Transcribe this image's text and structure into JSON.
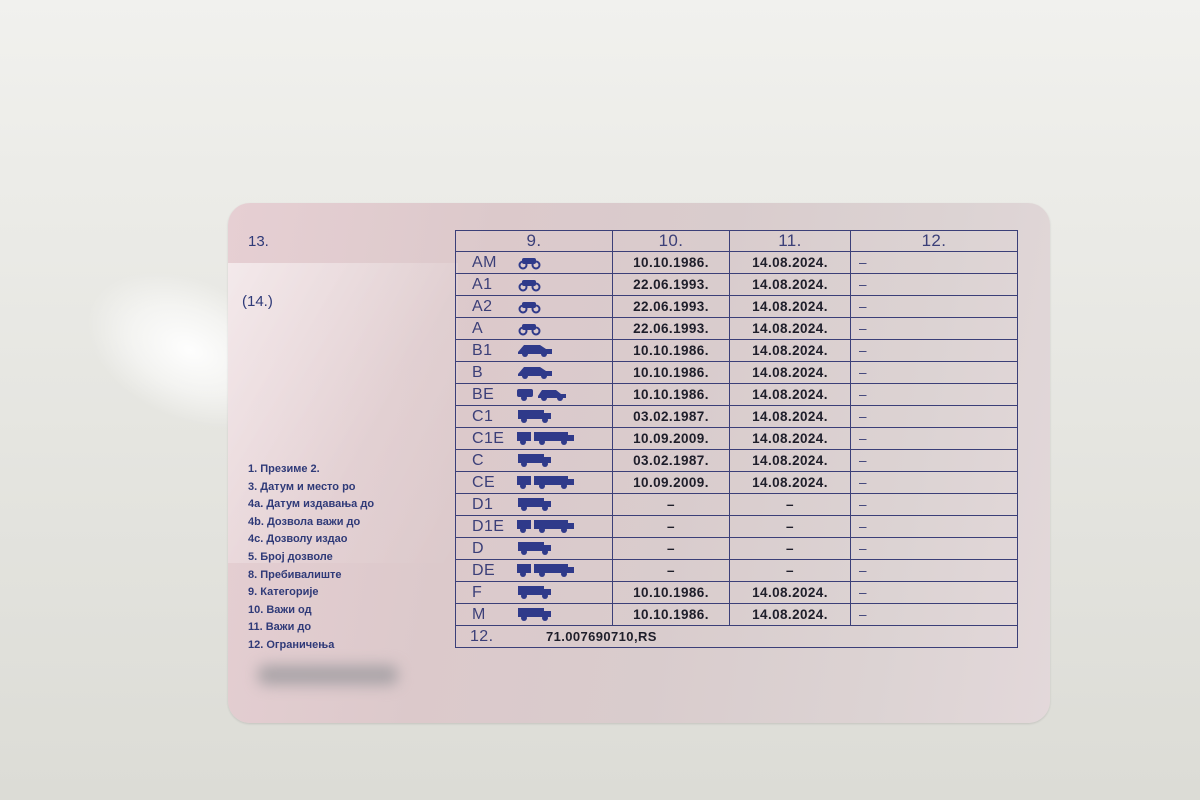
{
  "card": {
    "field13": "13.",
    "field14": "(14.)",
    "legend": [
      "1. Презиме  2.",
      "3. Датум и место ро",
      "4а. Датум издавања до",
      "4b. Дозвола важи до",
      "4c. Дозволу издао",
      "5. Број дозволе",
      "8. Пребивалиште",
      "9. Категорије",
      "10. Важи од",
      "11. Важи до",
      "12. Ограничења"
    ],
    "table": {
      "headers": [
        "9.",
        "10.",
        "11.",
        "12."
      ],
      "rows": [
        {
          "cat": "AM",
          "icon": "moped-icon",
          "from": "10.10.1986.",
          "to": "14.08.2024.",
          "restr": "–"
        },
        {
          "cat": "A1",
          "icon": "scooter-icon",
          "from": "22.06.1993.",
          "to": "14.08.2024.",
          "restr": "–"
        },
        {
          "cat": "A2",
          "icon": "motorcycle-icon",
          "from": "22.06.1993.",
          "to": "14.08.2024.",
          "restr": "–"
        },
        {
          "cat": "A",
          "icon": "motorcycle-icon",
          "from": "22.06.1993.",
          "to": "14.08.2024.",
          "restr": "–"
        },
        {
          "cat": "B1",
          "icon": "small-car-icon",
          "from": "10.10.1986.",
          "to": "14.08.2024.",
          "restr": "–"
        },
        {
          "cat": "B",
          "icon": "car-icon",
          "from": "10.10.1986.",
          "to": "14.08.2024.",
          "restr": "–"
        },
        {
          "cat": "BE",
          "icon": "car-trailer-icon",
          "from": "10.10.1986.",
          "to": "14.08.2024.",
          "restr": "–"
        },
        {
          "cat": "C1",
          "icon": "truck-icon",
          "from": "03.02.1987.",
          "to": "14.08.2024.",
          "restr": "–"
        },
        {
          "cat": "C1E",
          "icon": "truck-trailer-icon",
          "from": "10.09.2009.",
          "to": "14.08.2024.",
          "restr": "–"
        },
        {
          "cat": "C",
          "icon": "truck-icon",
          "from": "03.02.1987.",
          "to": "14.08.2024.",
          "restr": "–"
        },
        {
          "cat": "CE",
          "icon": "truck-trailer-icon",
          "from": "10.09.2009.",
          "to": "14.08.2024.",
          "restr": "–"
        },
        {
          "cat": "D1",
          "icon": "minibus-icon",
          "from": "–",
          "to": "–",
          "restr": "–"
        },
        {
          "cat": "D1E",
          "icon": "minibus-trailer-icon",
          "from": "–",
          "to": "–",
          "restr": "–"
        },
        {
          "cat": "D",
          "icon": "bus-icon",
          "from": "–",
          "to": "–",
          "restr": "–"
        },
        {
          "cat": "DE",
          "icon": "bus-trailer-icon",
          "from": "–",
          "to": "–",
          "restr": "–"
        },
        {
          "cat": "F",
          "icon": "tractor-icon",
          "from": "10.10.1986.",
          "to": "14.08.2024.",
          "restr": "–"
        },
        {
          "cat": "M",
          "icon": "machine-icon",
          "from": "10.10.1986.",
          "to": "14.08.2024.",
          "restr": "–"
        }
      ],
      "footer_label": "12.",
      "footer_value": "71.007690710,RS"
    }
  },
  "colors": {
    "ink": "#3b3f78",
    "card_bg": "#dccbcd"
  }
}
